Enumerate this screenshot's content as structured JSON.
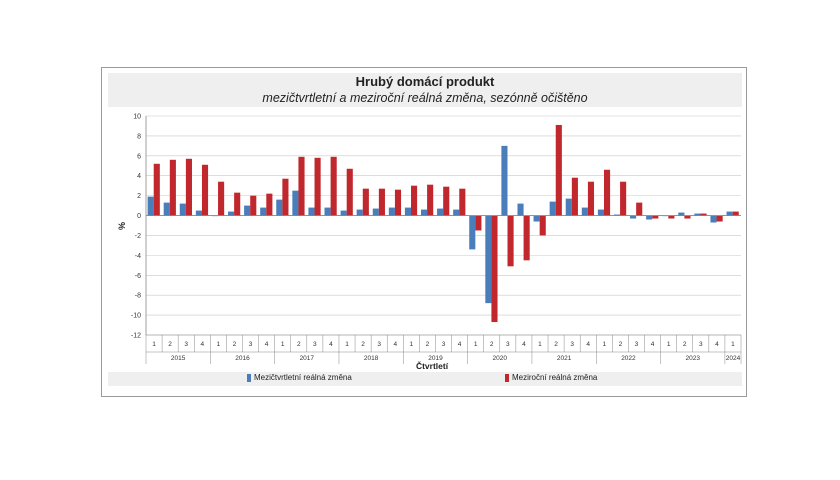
{
  "chart_data": {
    "type": "bar",
    "title": "Hrubý domácí produkt",
    "subtitle": "mezičtvrtletní a meziroční reálná změna, sezónně očištěno",
    "ylabel": "%",
    "xlabel": "Čtvrtletí",
    "ylim": [
      -12,
      10
    ],
    "yticks": [
      10,
      8,
      6,
      4,
      2,
      0,
      -2,
      -4,
      -6,
      -8,
      -10,
      -12
    ],
    "grid": true,
    "legend_position": "bottom",
    "categories": [
      "1",
      "2",
      "3",
      "4",
      "1",
      "2",
      "3",
      "4",
      "1",
      "2",
      "3",
      "4",
      "1",
      "2",
      "3",
      "4",
      "1",
      "2",
      "3",
      "4",
      "1",
      "2",
      "3",
      "4",
      "1",
      "2",
      "3",
      "4",
      "1",
      "2",
      "3",
      "4",
      "1",
      "2",
      "3",
      "4",
      "1"
    ],
    "years": [
      {
        "label": "2015",
        "quarters": 4
      },
      {
        "label": "2016",
        "quarters": 4
      },
      {
        "label": "2017",
        "quarters": 4
      },
      {
        "label": "2018",
        "quarters": 4
      },
      {
        "label": "2019",
        "quarters": 4
      },
      {
        "label": "2020",
        "quarters": 4
      },
      {
        "label": "2021",
        "quarters": 4
      },
      {
        "label": "2022",
        "quarters": 4
      },
      {
        "label": "2023",
        "quarters": 4
      },
      {
        "label": "2024",
        "quarters": 1
      }
    ],
    "series": [
      {
        "name": "Mezičtvrtletní reálná změna",
        "color": "#4a7ebb",
        "values": [
          1.9,
          1.3,
          1.2,
          0.5,
          0.0,
          0.4,
          1.0,
          0.8,
          1.6,
          2.5,
          0.8,
          0.8,
          0.5,
          0.6,
          0.7,
          0.8,
          0.8,
          0.6,
          0.7,
          0.6,
          -3.4,
          -8.8,
          7.0,
          1.2,
          -0.6,
          1.4,
          1.7,
          0.8,
          0.6,
          0.1,
          -0.3,
          -0.4,
          0.0,
          0.3,
          0.2,
          -0.7,
          0.4
        ]
      },
      {
        "name": "Meziroční reálná změna",
        "color": "#c0282d",
        "values": [
          5.2,
          5.6,
          5.7,
          5.1,
          3.4,
          2.3,
          2.0,
          2.2,
          3.7,
          5.9,
          5.8,
          5.9,
          4.7,
          2.7,
          2.7,
          2.6,
          3.0,
          3.1,
          2.9,
          2.7,
          -1.5,
          -10.7,
          -5.1,
          -4.5,
          -2.0,
          9.1,
          3.8,
          3.4,
          4.6,
          3.4,
          1.3,
          -0.3,
          -0.3,
          -0.3,
          0.2,
          -0.6,
          0.4
        ]
      }
    ]
  }
}
